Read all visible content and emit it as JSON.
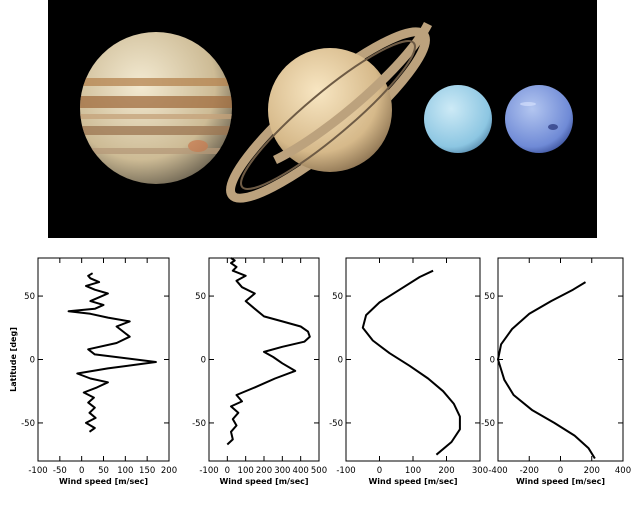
{
  "image": {
    "planets": [
      "Jupiter",
      "Saturn",
      "Uranus",
      "Neptune"
    ]
  },
  "chart_data": [
    {
      "type": "line",
      "planet": "Jupiter",
      "xlabel": "Wind speed [m/sec]",
      "ylabel": "Latitude [deg]",
      "xlim": [
        -100,
        200
      ],
      "ylim": [
        -80,
        80
      ],
      "xticks": [
        -100,
        -50,
        0,
        50,
        100,
        150,
        200
      ],
      "yticks": [
        -50,
        0,
        50
      ],
      "grid": false,
      "series": [
        {
          "x": [
            18,
            30,
            10,
            32,
            18,
            30,
            15,
            28,
            5,
            35,
            60,
            20,
            -10,
            60,
            170,
            30,
            15,
            80,
            110,
            95,
            80,
            110,
            60,
            20,
            -30,
            30,
            50,
            20,
            40,
            60,
            30,
            10,
            40,
            20,
            15,
            25
          ],
          "y": [
            -57,
            -54,
            -50,
            -46,
            -42,
            -38,
            -34,
            -30,
            -26,
            -22,
            -18,
            -15,
            -11,
            -7,
            -2,
            4,
            8,
            13,
            18,
            22,
            26,
            30,
            33,
            36,
            38,
            40,
            43,
            46,
            49,
            52,
            55,
            58,
            61,
            64,
            66,
            68
          ]
        }
      ]
    },
    {
      "type": "line",
      "planet": "Saturn",
      "xlabel": "Wind speed [m/sec]",
      "ylabel": "",
      "xlim": [
        -100,
        500
      ],
      "ylim": [
        -80,
        80
      ],
      "xticks": [
        -100,
        0,
        100,
        200,
        300,
        400,
        500
      ],
      "yticks": [
        -50,
        0,
        50
      ],
      "grid": false,
      "series": [
        {
          "x": [
            0,
            30,
            20,
            50,
            30,
            60,
            20,
            80,
            50,
            150,
            260,
            370,
            300,
            250,
            200,
            300,
            420,
            450,
            440,
            400,
            300,
            200,
            150,
            100,
            150,
            80,
            50,
            100,
            30,
            50,
            20,
            40,
            20
          ],
          "y": [
            -67,
            -63,
            -57,
            -52,
            -47,
            -42,
            -37,
            -33,
            -28,
            -22,
            -15,
            -9,
            -3,
            2,
            6,
            10,
            14,
            18,
            22,
            26,
            30,
            34,
            40,
            46,
            52,
            57,
            62,
            66,
            70,
            73,
            76,
            78,
            80
          ]
        }
      ]
    },
    {
      "type": "line",
      "planet": "Uranus",
      "xlabel": "Wind speed [m/sec]",
      "ylabel": "",
      "xlim": [
        -100,
        300
      ],
      "ylim": [
        -80,
        80
      ],
      "xticks": [
        -100,
        0,
        100,
        200,
        300
      ],
      "yticks": [
        -50,
        0,
        50
      ],
      "grid": false,
      "series": [
        {
          "x": [
            170,
            215,
            240,
            240,
            222,
            190,
            145,
            90,
            30,
            -20,
            -50,
            -40,
            0,
            60,
            120,
            160
          ],
          "y": [
            -75,
            -65,
            -55,
            -45,
            -35,
            -25,
            -15,
            -5,
            5,
            15,
            25,
            35,
            45,
            55,
            65,
            70
          ]
        }
      ]
    },
    {
      "type": "line",
      "planet": "Neptune",
      "xlabel": "Wind speed [m/sec]",
      "ylabel": "",
      "xlim": [
        -400,
        400
      ],
      "ylim": [
        -80,
        80
      ],
      "xticks": [
        -400,
        -200,
        0,
        200,
        400
      ],
      "yticks": [
        -50,
        0,
        50
      ],
      "grid": false,
      "series": [
        {
          "x": [
            220,
            180,
            90,
            -40,
            -180,
            -300,
            -360,
            -400,
            -380,
            -310,
            -200,
            -60,
            80,
            160
          ],
          "y": [
            -78,
            -70,
            -60,
            -50,
            -40,
            -28,
            -16,
            0,
            12,
            24,
            36,
            46,
            55,
            61
          ]
        }
      ]
    }
  ]
}
